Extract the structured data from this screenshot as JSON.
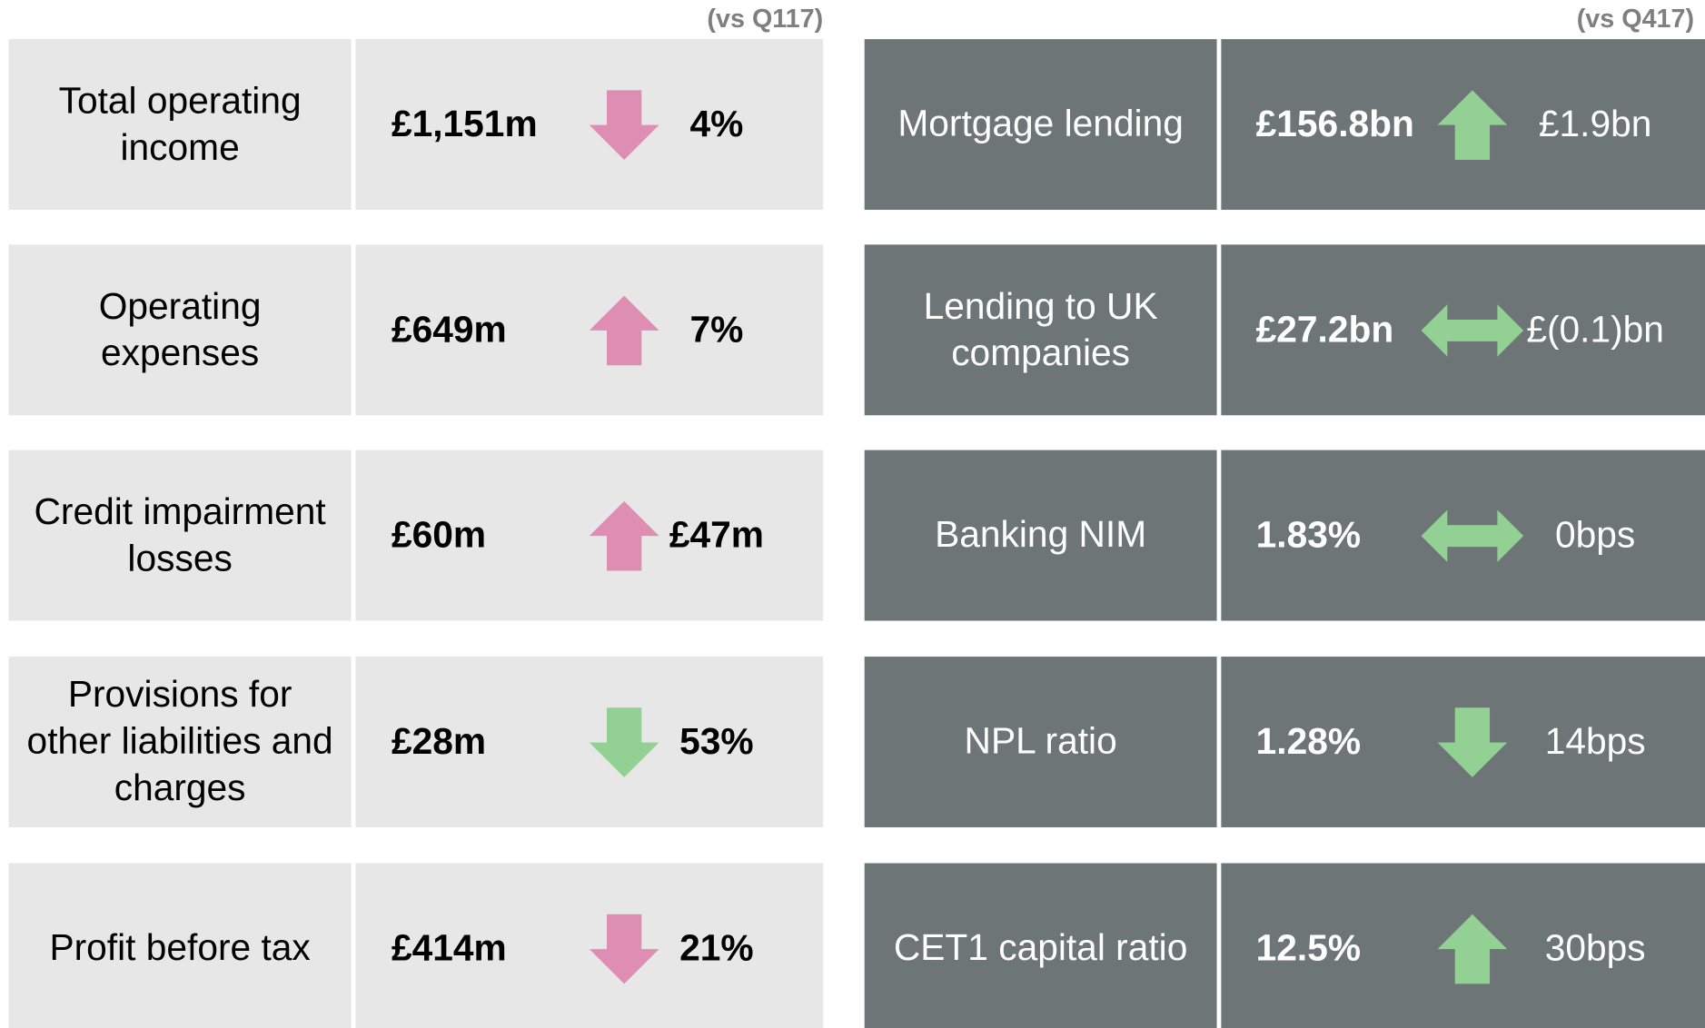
{
  "panels": [
    {
      "header": "(vs Q117)",
      "theme": "light",
      "rows": [
        {
          "label": "Total operating income",
          "value": "£1,151m",
          "arrow": "down",
          "arrow_color": "#de8db3",
          "change": "4%"
        },
        {
          "label": "Operating expenses",
          "value": "£649m",
          "arrow": "up",
          "arrow_color": "#de8db3",
          "change": "7%"
        },
        {
          "label": "Credit impairment losses",
          "value": "£60m",
          "arrow": "up",
          "arrow_color": "#de8db3",
          "change": "£47m"
        },
        {
          "label": "Provisions for other liabilities and charges",
          "value": "£28m",
          "arrow": "down",
          "arrow_color": "#93d094",
          "change": "53%"
        },
        {
          "label": "Profit before tax",
          "value": "£414m",
          "arrow": "down",
          "arrow_color": "#de8db3",
          "change": "21%"
        }
      ]
    },
    {
      "header": "(vs Q417)",
      "theme": "dark",
      "rows": [
        {
          "label": "Mortgage lending",
          "value": "£156.8bn",
          "arrow": "up",
          "arrow_color": "#93d094",
          "change": "£1.9bn"
        },
        {
          "label": "Lending to UK companies",
          "value": "£27.2bn",
          "arrow": "flat",
          "arrow_color": "#93d094",
          "change": "£(0.1)bn"
        },
        {
          "label": "Banking NIM",
          "value": "1.83%",
          "arrow": "flat",
          "arrow_color": "#93d094",
          "change": "0bps"
        },
        {
          "label": "NPL ratio",
          "value": "1.28%",
          "arrow": "down",
          "arrow_color": "#93d094",
          "change": "14bps"
        },
        {
          "label": "CET1 capital ratio",
          "value": "12.5%",
          "arrow": "up",
          "arrow_color": "#93d094",
          "change": "30bps"
        }
      ]
    }
  ]
}
